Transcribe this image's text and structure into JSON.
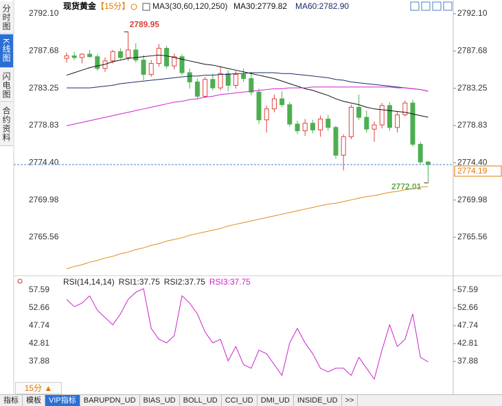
{
  "chart_data": [
    {
      "type": "candlestick",
      "title": "现货黄金",
      "period": "【15分】",
      "legend_title": "MA3(30,60,120,250)",
      "ylim": [
        2761.16,
        2793.08
      ],
      "yticks": [
        {
          "value": 2792.1,
          "label": "2792.10"
        },
        2787.68,
        2783.25,
        2778.83,
        {
          "value": 2774.4,
          "label": "2774.40"
        },
        2769.98,
        2765.56
      ],
      "up_color": "#e0403a",
      "down_color": "#4caf50",
      "ohlc": [
        [
          2786.8,
          2787.5,
          2786.3,
          2787.1
        ],
        [
          2787.1,
          2787.6,
          2786.6,
          2786.9
        ],
        [
          2786.9,
          2787.4,
          2786.2,
          2787.3
        ],
        [
          2787.3,
          2787.8,
          2786.9,
          2787.0
        ],
        [
          2787.0,
          2787.3,
          2785.3,
          2785.6
        ],
        [
          2785.6,
          2786.9,
          2785.2,
          2786.5
        ],
        [
          2786.5,
          2787.8,
          2786.2,
          2787.6
        ],
        [
          2787.6,
          2788.0,
          2786.7,
          2786.9
        ],
        [
          2786.9,
          2789.95,
          2786.5,
          2787.8
        ],
        [
          2787.8,
          2788.6,
          2786.3,
          2786.6
        ],
        [
          2786.6,
          2787.2,
          2784.2,
          2784.9
        ],
        [
          2784.9,
          2786.6,
          2784.6,
          2786.2
        ],
        [
          2786.2,
          2788.5,
          2785.8,
          2788.0
        ],
        [
          2788.0,
          2788.3,
          2785.6,
          2785.9
        ],
        [
          2785.9,
          2787.4,
          2785.5,
          2787.0
        ],
        [
          2787.0,
          2787.3,
          2784.8,
          2785.1
        ],
        [
          2785.1,
          2785.6,
          2783.2,
          2784.0
        ],
        [
          2784.0,
          2784.4,
          2782.0,
          2782.3
        ],
        [
          2782.3,
          2784.6,
          2782.1,
          2784.3
        ],
        [
          2784.3,
          2785.0,
          2783.0,
          2783.3
        ],
        [
          2783.3,
          2785.8,
          2783.0,
          2785.0
        ],
        [
          2785.0,
          2785.4,
          2782.9,
          2783.6
        ],
        [
          2783.6,
          2785.3,
          2783.2,
          2784.9
        ],
        [
          2784.9,
          2785.6,
          2784.0,
          2784.4
        ],
        [
          2784.4,
          2785.2,
          2782.4,
          2782.8
        ],
        [
          2782.8,
          2783.2,
          2779.0,
          2779.5
        ],
        [
          2779.5,
          2781.2,
          2778.0,
          2780.8
        ],
        [
          2780.8,
          2782.5,
          2780.4,
          2782.0
        ],
        [
          2782.0,
          2782.9,
          2781.0,
          2781.3
        ],
        [
          2781.3,
          2781.6,
          2778.7,
          2779.0
        ],
        [
          2779.0,
          2779.4,
          2777.8,
          2778.2
        ],
        [
          2778.2,
          2779.6,
          2777.6,
          2779.1
        ],
        [
          2779.1,
          2779.5,
          2777.9,
          2778.3
        ],
        [
          2778.3,
          2780.0,
          2777.5,
          2779.6
        ],
        [
          2779.6,
          2780.1,
          2778.2,
          2778.6
        ],
        [
          2778.6,
          2778.8,
          2774.9,
          2775.3
        ],
        [
          2775.3,
          2777.8,
          2773.5,
          2777.5
        ],
        [
          2777.5,
          2781.3,
          2777.2,
          2781.0
        ],
        [
          2781.0,
          2782.5,
          2779.5,
          2779.8
        ],
        [
          2779.8,
          2780.6,
          2778.0,
          2778.4
        ],
        [
          2778.4,
          2779.3,
          2776.9,
          2778.9
        ],
        [
          2778.9,
          2781.5,
          2778.5,
          2781.2
        ],
        [
          2781.2,
          2781.6,
          2778.2,
          2778.6
        ],
        [
          2778.6,
          2780.5,
          2778.0,
          2780.1
        ],
        [
          2780.1,
          2781.8,
          2779.9,
          2781.5
        ],
        [
          2781.5,
          2781.9,
          2776.3,
          2776.6
        ],
        [
          2776.6,
          2776.9,
          2774.3,
          2774.5
        ],
        [
          2774.5,
          2774.6,
          2772.01,
          2774.19
        ]
      ],
      "series": [
        {
          "name": "MA30:2779.82",
          "color": "#111111",
          "values": [
            2784.8,
            2785.1,
            2785.4,
            2785.7,
            2785.9,
            2786.1,
            2786.4,
            2786.6,
            2786.8,
            2786.9,
            2787.0,
            2787.1,
            2787.2,
            2787.1,
            2786.9,
            2786.7,
            2786.5,
            2786.3,
            2786.1,
            2786.0,
            2785.8,
            2785.6,
            2785.4,
            2785.2,
            2785.0,
            2784.8,
            2784.6,
            2784.4,
            2784.1,
            2783.8,
            2783.5,
            2783.2,
            2783.0,
            2782.7,
            2782.4,
            2782.0,
            2781.7,
            2781.5,
            2781.3,
            2781.0,
            2780.8,
            2780.7,
            2780.6,
            2780.5,
            2780.4,
            2780.2,
            2780.0,
            2779.82
          ]
        },
        {
          "name": "MA60:2782.90",
          "color": "#1c2a6b",
          "values": [
            2783.3,
            2783.3,
            2783.3,
            2783.3,
            2783.4,
            2783.5,
            2783.6,
            2783.8,
            2783.9,
            2784.0,
            2784.1,
            2784.2,
            2784.3,
            2784.4,
            2784.5,
            2784.6,
            2784.7,
            2784.7,
            2784.8,
            2784.8,
            2784.9,
            2784.9,
            2785.0,
            2785.0,
            2785.1,
            2785.1,
            2785.1,
            2785.1,
            2785.0,
            2785.0,
            2784.9,
            2784.8,
            2784.7,
            2784.6,
            2784.5,
            2784.3,
            2784.2,
            2784.0,
            2783.9,
            2783.8,
            2783.7,
            2783.6,
            2783.5,
            2783.4,
            2783.3,
            2783.2,
            2783.1,
            2782.9
          ]
        },
        {
          "color": "#cc22cc",
          "values": [
            2778.8,
            2779.0,
            2779.2,
            2779.4,
            2779.6,
            2779.8,
            2780.0,
            2780.2,
            2780.4,
            2780.6,
            2780.8,
            2781.0,
            2781.2,
            2781.4,
            2781.6,
            2781.7,
            2781.9,
            2782.0,
            2782.2,
            2782.3,
            2782.5,
            2782.6,
            2782.7,
            2782.8,
            2782.9,
            2783.0,
            2783.1,
            2783.2,
            2783.2,
            2783.3,
            2783.3,
            2783.3,
            2783.4,
            2783.4,
            2783.4,
            2783.4,
            2783.4,
            2783.4,
            2783.4,
            2783.4,
            2783.4,
            2783.4,
            2783.4,
            2783.3,
            2783.3,
            2783.2,
            2783.1,
            2782.9
          ]
        },
        {
          "color": "#e08a1a",
          "values": [
            2761.8,
            2762.1,
            2762.3,
            2762.6,
            2762.8,
            2763.1,
            2763.3,
            2763.6,
            2763.8,
            2764.1,
            2764.3,
            2764.6,
            2764.8,
            2765.1,
            2765.3,
            2765.5,
            2765.8,
            2766.0,
            2766.2,
            2766.4,
            2766.6,
            2766.9,
            2767.1,
            2767.3,
            2767.5,
            2767.7,
            2767.9,
            2768.1,
            2768.3,
            2768.5,
            2768.7,
            2768.9,
            2769.1,
            2769.3,
            2769.5,
            2769.6,
            2769.8,
            2770.0,
            2770.2,
            2770.4,
            2770.5,
            2770.7,
            2770.9,
            2771.0,
            2771.2,
            2771.3,
            2771.5,
            2771.6
          ]
        }
      ],
      "annotations": [
        {
          "x": 8,
          "y": 2789.95,
          "color": "#d9403a"
        },
        {
          "x": 47,
          "y": 2772.01,
          "color": "#6aa84f"
        }
      ],
      "last_price": 2774.19,
      "last_color": "#e07a00"
    },
    {
      "type": "line",
      "ylim": [
        32.57,
        61.0
      ],
      "yticks": [
        57.59,
        52.66,
        47.74,
        42.81,
        37.88
      ],
      "legend_labels": [
        {
          "text": "RSI(14,14,14)",
          "color": "#222222"
        },
        {
          "text": "RSI1:37.75",
          "color": "#222222"
        },
        {
          "text": "RSI2:37.75",
          "color": "#222222"
        }
      ],
      "series": [
        {
          "name": "RSI3:37.75",
          "color": "#cc22cc",
          "values": [
            55,
            53,
            54,
            56,
            52,
            50,
            48,
            51,
            55,
            57,
            58,
            47,
            44,
            43,
            45,
            56,
            54,
            51,
            46,
            43,
            44,
            38,
            42,
            37,
            36,
            41,
            40,
            37,
            34,
            43,
            47,
            43,
            40,
            36,
            35,
            36,
            36,
            34,
            39,
            36,
            33,
            41,
            48,
            42,
            44,
            51,
            39,
            37.75
          ]
        }
      ]
    }
  ],
  "sidebar": [
    "分时图",
    "K线图",
    "闪电图",
    "合约资料"
  ],
  "period_button": "15分 ▲",
  "tabs": [
    "指标",
    "模板",
    "VIP指标",
    "BARUPDN_UD",
    "BIAS_UD",
    "BOLL_UD",
    "CCI_UD",
    "DMI_UD",
    "INSIDE_UD",
    ">>"
  ]
}
